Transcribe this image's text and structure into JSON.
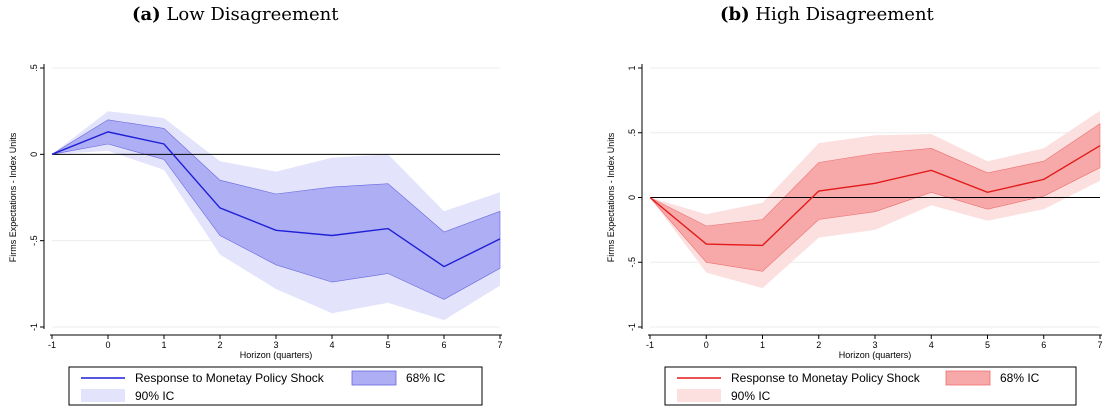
{
  "chart_data": [
    {
      "type": "line",
      "caption_tag": "(a)",
      "caption_text": "Low Disagreement",
      "xlabel": "Horizon (quarters)",
      "ylabel": "Firms Expectations - Index Units",
      "x": [
        -1,
        0,
        1,
        2,
        3,
        4,
        5,
        6,
        7
      ],
      "xlim": [
        -1,
        7
      ],
      "ylim": [
        -1,
        0.5
      ],
      "yticks": [
        -1,
        -0.5,
        0,
        0.5
      ],
      "ytick_labels": [
        "-1",
        "-.5",
        "0",
        ".5"
      ],
      "series": [
        {
          "name": "Response to Monetay Policy Shock",
          "values": [
            0,
            0.13,
            0.06,
            -0.31,
            -0.44,
            -0.47,
            -0.43,
            -0.65,
            -0.49
          ]
        },
        {
          "name": "68% IC",
          "lower": [
            0,
            0.06,
            -0.03,
            -0.47,
            -0.64,
            -0.74,
            -0.69,
            -0.84,
            -0.66
          ],
          "upper": [
            0,
            0.2,
            0.15,
            -0.15,
            -0.23,
            -0.19,
            -0.17,
            -0.45,
            -0.33
          ]
        },
        {
          "name": "90% IC",
          "lower": [
            0,
            0.02,
            -0.09,
            -0.58,
            -0.78,
            -0.92,
            -0.86,
            -0.96,
            -0.76
          ],
          "upper": [
            0,
            0.25,
            0.21,
            -0.04,
            -0.1,
            -0.02,
            0,
            -0.33,
            -0.22
          ]
        }
      ],
      "colors": {
        "line": "#1f1fd6",
        "band68": "#aeaef5",
        "band90": "#e3e3fb",
        "band68_edge": "#6767e0"
      },
      "legend_position": "bottom"
    },
    {
      "type": "line",
      "caption_tag": "(b)",
      "caption_text": "High Disagreement",
      "xlabel": "Horizon (quarters)",
      "ylabel": "Firms Expectations - Index Units",
      "x": [
        -1,
        0,
        1,
        2,
        3,
        4,
        5,
        6,
        7
      ],
      "xlim": [
        -1,
        7
      ],
      "ylim": [
        -1,
        1
      ],
      "yticks": [
        -1,
        -0.5,
        0,
        0.5,
        1
      ],
      "ytick_labels": [
        "-1",
        "-.5",
        "0",
        ".5",
        "1"
      ],
      "series": [
        {
          "name": "Response to Monetay Policy Shock",
          "values": [
            0,
            -0.36,
            -0.37,
            0.05,
            0.11,
            0.21,
            0.04,
            0.14,
            0.4
          ]
        },
        {
          "name": "68% IC",
          "lower": [
            0,
            -0.5,
            -0.57,
            -0.17,
            -0.11,
            0.04,
            -0.09,
            0.01,
            0.23
          ],
          "upper": [
            0,
            -0.22,
            -0.17,
            0.27,
            0.34,
            0.38,
            0.19,
            0.28,
            0.57
          ]
        },
        {
          "name": "90% IC",
          "lower": [
            0,
            -0.58,
            -0.7,
            -0.31,
            -0.25,
            -0.06,
            -0.18,
            -0.09,
            0.13
          ],
          "upper": [
            0,
            -0.13,
            -0.04,
            0.42,
            0.48,
            0.49,
            0.28,
            0.38,
            0.67
          ]
        }
      ],
      "colors": {
        "line": "#e31a1a",
        "band68": "#f7a9a9",
        "band90": "#fce0e0",
        "band68_edge": "#ee6f6f"
      },
      "legend_position": "bottom"
    }
  ]
}
